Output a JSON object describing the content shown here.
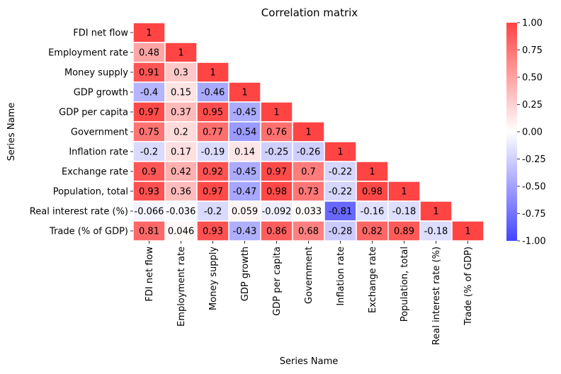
{
  "chart_data": {
    "type": "heatmap",
    "title": "Correlation matrix",
    "xlabel": "Series Name",
    "ylabel": "Series Name",
    "labels": [
      "FDI net flow",
      "Employment rate",
      "Money supply",
      "GDP growth",
      "GDP per capita",
      "Government",
      "Inflation rate",
      "Exchange rate",
      "Population, total",
      "Real interest rate (%)",
      "Trade (% of GDP)"
    ],
    "matrix": [
      [
        "1"
      ],
      [
        "0.48",
        "1"
      ],
      [
        "0.91",
        "0.3",
        "1"
      ],
      [
        "-0.4",
        "0.15",
        "-0.46",
        "1"
      ],
      [
        "0.97",
        "0.37",
        "0.95",
        "-0.45",
        "1"
      ],
      [
        "0.75",
        "0.2",
        "0.77",
        "-0.54",
        "0.76",
        "1"
      ],
      [
        "-0.2",
        "0.17",
        "-0.19",
        "0.14",
        "-0.25",
        "-0.26",
        "1"
      ],
      [
        "0.9",
        "0.42",
        "0.92",
        "-0.45",
        "0.97",
        "0.7",
        "-0.22",
        "1"
      ],
      [
        "0.93",
        "0.36",
        "0.97",
        "-0.47",
        "0.98",
        "0.73",
        "-0.22",
        "0.98",
        "1"
      ],
      [
        "-0.066",
        "-0.036",
        "-0.2",
        "0.059",
        "-0.092",
        "0.033",
        "-0.81",
        "-0.16",
        "-0.18",
        "1"
      ],
      [
        "0.81",
        "0.046",
        "0.93",
        "-0.43",
        "0.86",
        "0.68",
        "-0.28",
        "0.82",
        "0.89",
        "-0.18",
        "1"
      ]
    ],
    "mask": "upper-triangle",
    "colorbar": {
      "vmin": -1,
      "vmax": 1,
      "ticks": [
        "1.00",
        "0.75",
        "0.50",
        "0.25",
        "0.00",
        "-0.25",
        "-0.50",
        "-0.75",
        "-1.00"
      ],
      "low_color": "#4444ff",
      "mid_color": "#ffffff",
      "high_color": "#ff4444"
    },
    "legend": "colorbar-right",
    "grid": false
  }
}
